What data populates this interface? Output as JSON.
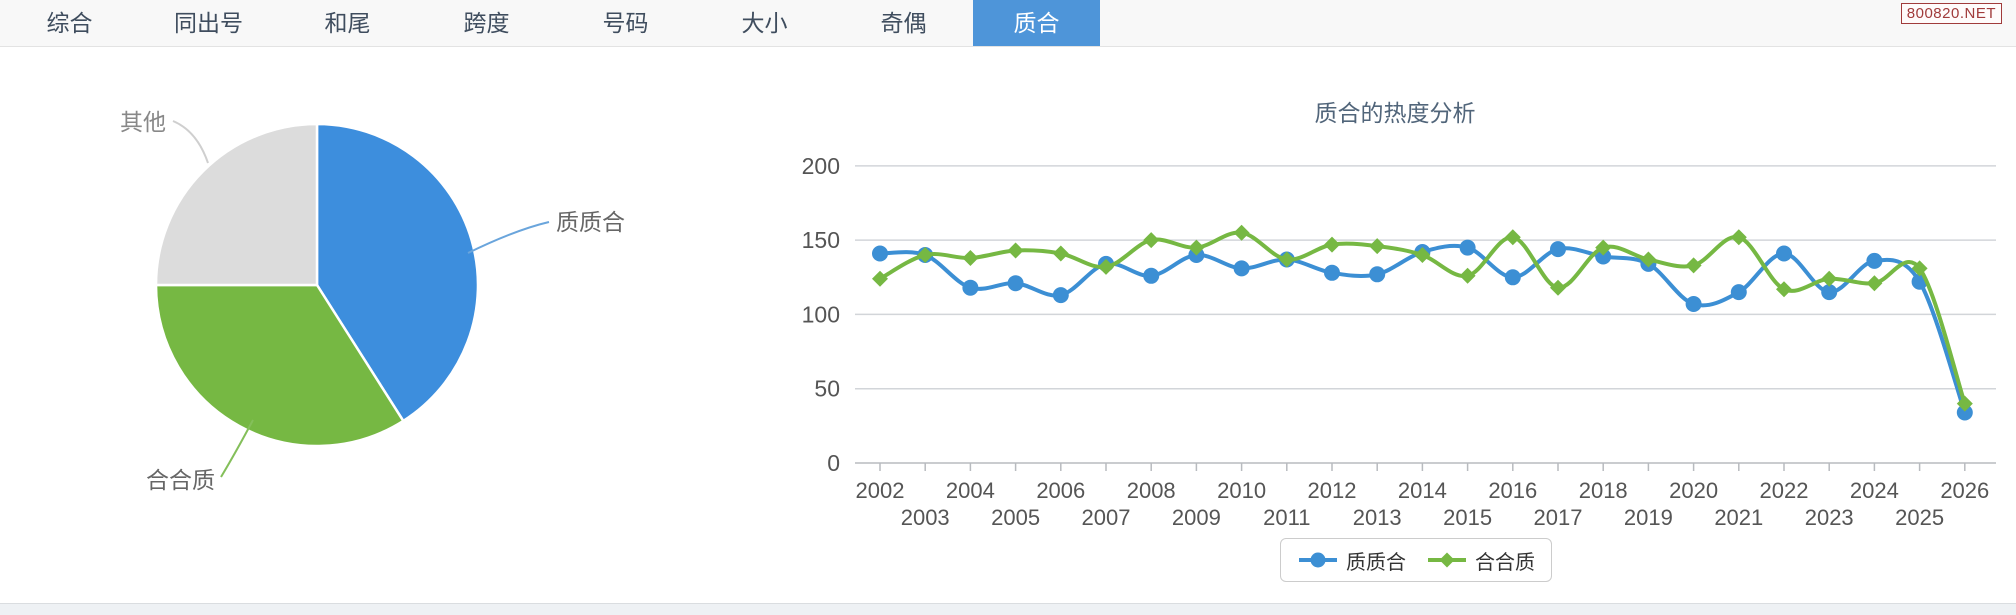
{
  "tabbar": {
    "items": [
      {
        "label": "综合",
        "active": false
      },
      {
        "label": "同出号",
        "active": false
      },
      {
        "label": "和尾",
        "active": false
      },
      {
        "label": "跨度",
        "active": false
      },
      {
        "label": "号码",
        "active": false
      },
      {
        "label": "大小",
        "active": false
      },
      {
        "label": "奇偶",
        "active": false
      },
      {
        "label": "质合",
        "active": true
      }
    ]
  },
  "watermark": {
    "text": "800820.NET"
  },
  "chart_data": [
    {
      "type": "pie",
      "labels": [
        "质质合",
        "合合质",
        "其他"
      ],
      "values": [
        41,
        34,
        25
      ],
      "colors": [
        "#3d8edd",
        "#76b843",
        "#dcdcdc"
      ],
      "legend_position": "none",
      "title": ""
    },
    {
      "type": "line",
      "title": "质合的热度分析",
      "x": [
        "2002",
        "2003",
        "2004",
        "2005",
        "2006",
        "2007",
        "2008",
        "2009",
        "2010",
        "2011",
        "2012",
        "2013",
        "2014",
        "2015",
        "2016",
        "2017",
        "2018",
        "2019",
        "2020",
        "2021",
        "2022",
        "2023",
        "2024",
        "2025",
        "2026"
      ],
      "series": [
        {
          "name": "质质合",
          "color": "#3c8fd4",
          "marker": "circle",
          "values": [
            141,
            140,
            118,
            121,
            113,
            134,
            126,
            140,
            131,
            137,
            128,
            127,
            142,
            145,
            125,
            144,
            139,
            134,
            107,
            115,
            141,
            115,
            136,
            122,
            34
          ]
        },
        {
          "name": "合合质",
          "color": "#76b843",
          "marker": "diamond",
          "values": [
            124,
            140,
            138,
            143,
            141,
            132,
            150,
            145,
            155,
            137,
            147,
            146,
            140,
            126,
            152,
            118,
            145,
            137,
            133,
            152,
            117,
            124,
            121,
            131,
            40
          ]
        }
      ],
      "ylim": [
        0,
        200
      ],
      "yticks": [
        0,
        50,
        100,
        150,
        200
      ],
      "grid": true,
      "legend_position": "bottom"
    }
  ]
}
